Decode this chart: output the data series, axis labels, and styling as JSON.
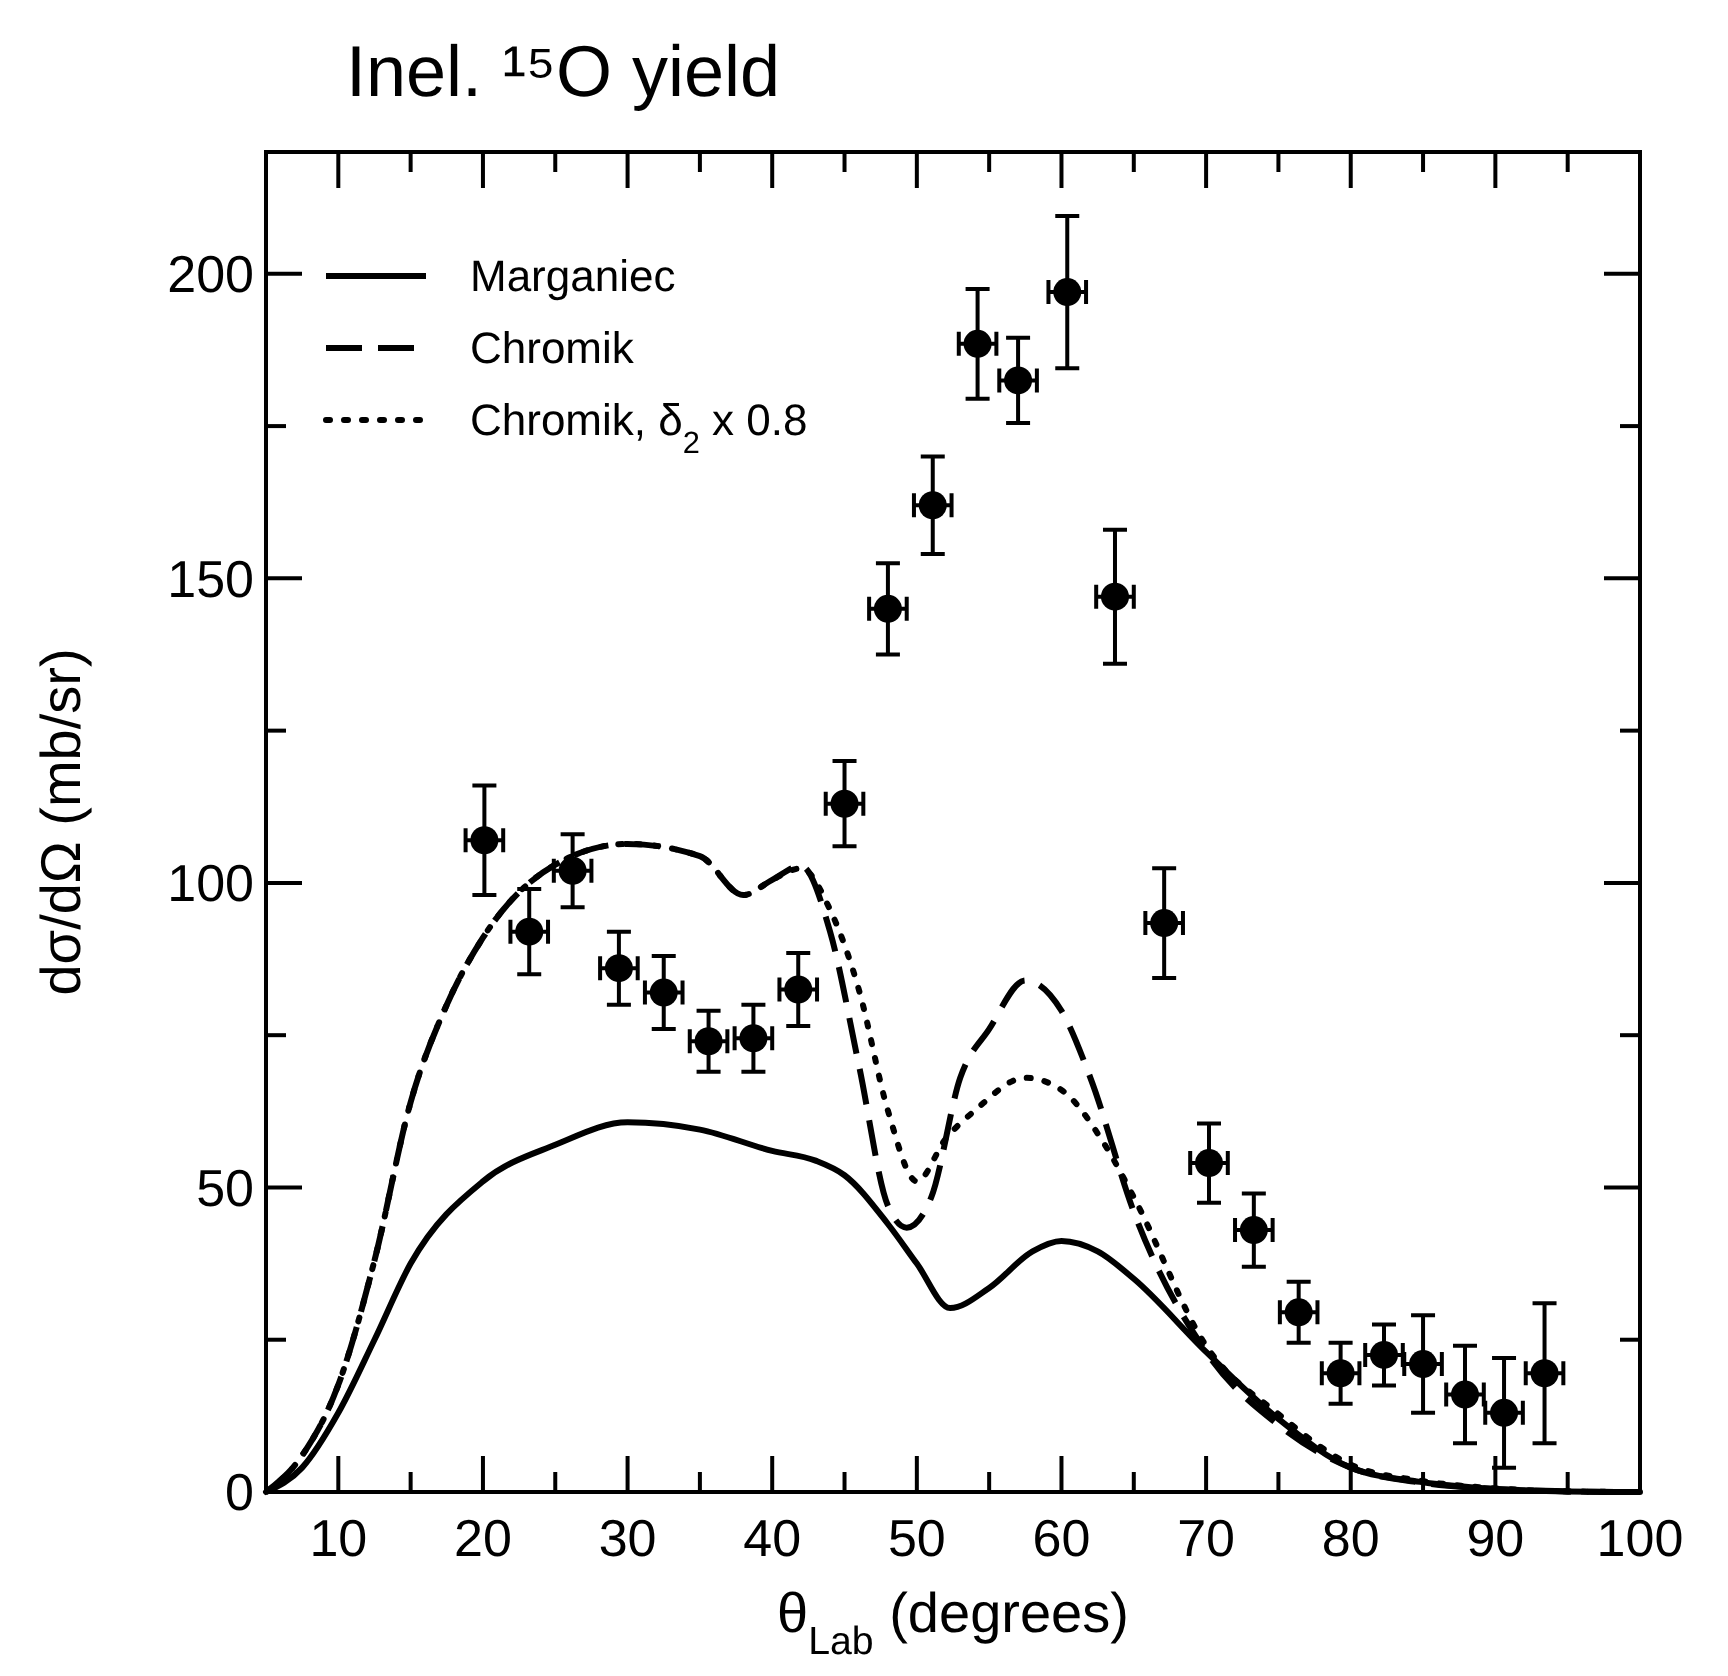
{
  "chart_data": {
    "type": "line",
    "title": "Inel. ¹⁵O yield",
    "xlabel": "θ$_{Lab}$ (degrees)",
    "ylabel": "dσ/dΩ (mb/sr)",
    "xlim": [
      5,
      100
    ],
    "ylim": [
      0,
      220
    ],
    "xticks": [
      10,
      {
        "value": 15,
        "label": null
      },
      20,
      {
        "value": 25,
        "label": null
      },
      30,
      {
        "value": 35,
        "label": null
      },
      40,
      {
        "value": 45,
        "label": null
      },
      50,
      {
        "value": 55,
        "label": null
      },
      60,
      {
        "value": 65,
        "label": null
      },
      70,
      {
        "value": 75,
        "label": null
      },
      80,
      {
        "value": 85,
        "label": null
      },
      90,
      {
        "value": 95,
        "label": null
      },
      100
    ],
    "yticks": [
      0,
      {
        "value": 25,
        "label": null
      },
      50,
      {
        "value": 75,
        "label": null
      },
      100,
      {
        "value": 125,
        "label": null
      },
      150,
      {
        "value": 175,
        "label": null
      },
      200
    ],
    "grid": false,
    "legend": "top left",
    "series": [
      {
        "name": "Marganiec",
        "color": "#000000",
        "line_style": "solid",
        "marker": "none",
        "x": [
          5,
          7.5,
          10,
          12.5,
          15,
          20,
          25,
          30,
          35,
          40,
          43,
          45,
          48,
          50,
          52.3,
          55,
          58,
          60,
          62.5,
          65,
          70,
          75,
          80,
          85,
          90,
          95,
          100
        ],
        "values": [
          0,
          4,
          13,
          25,
          37.5,
          51,
          57,
          60.7,
          59.5,
          56,
          54.4,
          52,
          44,
          37.5,
          30.2,
          33.5,
          39.5,
          41.2,
          39.5,
          35,
          23,
          12,
          4,
          1.6,
          0.5,
          0.1,
          0
        ]
      },
      {
        "name": "Chromik",
        "color": "#000000",
        "line_style": "dashed",
        "marker": "none",
        "x": [
          5,
          7.5,
          10,
          12.5,
          15,
          17.5,
          20,
          25,
          30,
          35,
          38,
          40,
          42,
          44,
          46,
          48,
          49.3,
          51,
          53,
          55,
          57.5,
          60,
          62,
          65,
          70,
          75,
          80,
          85,
          90,
          95,
          100
        ],
        "values": [
          0,
          6,
          17.6,
          38,
          64,
          80,
          91,
          103,
          106.4,
          104.4,
          98,
          100.5,
          102.8,
          92,
          70,
          47,
          43.4,
          48.4,
          68,
          76,
          84,
          79,
          68,
          46,
          23,
          11,
          4,
          1.5,
          0.5,
          0.1,
          0
        ]
      },
      {
        "name": "Chromik, δ$_{2}$ x 0.8",
        "color": "#000000",
        "line_style": "dotted",
        "marker": "none",
        "x": [
          5,
          7.5,
          10,
          12.5,
          15,
          17.5,
          20,
          25,
          30,
          35,
          38,
          40,
          42,
          44,
          46,
          48,
          50,
          52,
          54,
          57.5,
          60,
          63,
          65,
          70,
          75,
          80,
          85,
          90,
          95,
          100
        ],
        "values": [
          0,
          6,
          17.6,
          38,
          64,
          80,
          91,
          103,
          106.4,
          104.4,
          98,
          100.5,
          102.4,
          95.6,
          82.4,
          62.6,
          51,
          58,
          62.6,
          68,
          66,
          57,
          48.4,
          24,
          12.8,
          4.5,
          1.8,
          0.6,
          0.1,
          0
        ]
      },
      {
        "type": "scatter",
        "color": "#000000",
        "marker": "circle",
        "x": [
          20.1,
          23.2,
          26.2,
          29.4,
          32.5,
          35.6,
          38.7,
          41.8,
          45,
          48,
          51.1,
          54.2,
          57,
          60.4,
          63.7,
          67.1,
          70.2,
          73.3,
          76.4,
          79.3,
          82.3,
          85,
          87.9,
          90.6,
          93.4
        ],
        "values": [
          107,
          92,
          102,
          86,
          82,
          74,
          74.5,
          82.5,
          113,
          145,
          162,
          188.5,
          182.5,
          197,
          147,
          93.4,
          54,
          43,
          29.5,
          19.5,
          22.5,
          21,
          16,
          13,
          19.5
        ],
        "errors": [
          9,
          7,
          6,
          6,
          6,
          5,
          5.5,
          6,
          7,
          7.5,
          8,
          9,
          7,
          12.5,
          11,
          9,
          6.5,
          6,
          5,
          5,
          5,
          8,
          8,
          9,
          11.5
        ],
        "xerrors": [
          1.3,
          1.3,
          1.3,
          1.3,
          1.3,
          1.3,
          1.3,
          1.3,
          1.3,
          1.3,
          1.3,
          1.3,
          1.3,
          1.3,
          1.3,
          1.3,
          1.3,
          1.3,
          1.3,
          1.3,
          1.3,
          1.3,
          1.3,
          1.3,
          1.3
        ]
      }
    ]
  }
}
